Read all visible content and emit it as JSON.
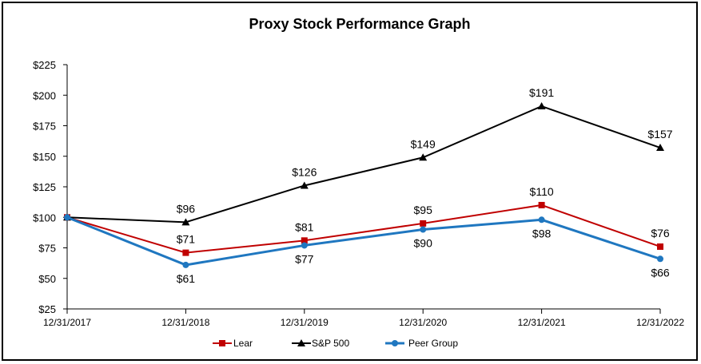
{
  "chart_data": {
    "type": "line",
    "title": "Proxy Stock Performance Graph",
    "xlabel": "",
    "ylabel": "",
    "categories": [
      "12/31/2017",
      "12/31/2018",
      "12/31/2019",
      "12/31/2020",
      "12/31/2021",
      "12/31/2022"
    ],
    "ylim": [
      25,
      225
    ],
    "yticks": [
      25,
      50,
      75,
      100,
      125,
      150,
      175,
      200,
      225
    ],
    "ytick_labels": [
      "$25",
      "$50",
      "$75",
      "$100",
      "$125",
      "$150",
      "$175",
      "$200",
      "$225"
    ],
    "grid": false,
    "legend_position": "bottom",
    "series": [
      {
        "name": "Lear",
        "color": "#C00000",
        "marker": "square",
        "values": [
          100,
          71,
          81,
          95,
          110,
          76
        ],
        "labels": [
          "",
          "$71",
          "$81",
          "$95",
          "$110",
          "$76"
        ],
        "label_side": "above"
      },
      {
        "name": "S&P 500",
        "color": "#000000",
        "marker": "triangle",
        "values": [
          100,
          96,
          126,
          149,
          191,
          157
        ],
        "labels": [
          "",
          "$96",
          "$126",
          "$149",
          "$191",
          "$157"
        ],
        "label_side": "above"
      },
      {
        "name": "Peer Group",
        "color": "#1F77C0",
        "marker": "circle",
        "values": [
          100,
          61,
          77,
          90,
          98,
          66
        ],
        "labels": [
          "",
          "$61",
          "$77",
          "$90",
          "$98",
          "$66"
        ],
        "label_side": "below"
      }
    ]
  }
}
